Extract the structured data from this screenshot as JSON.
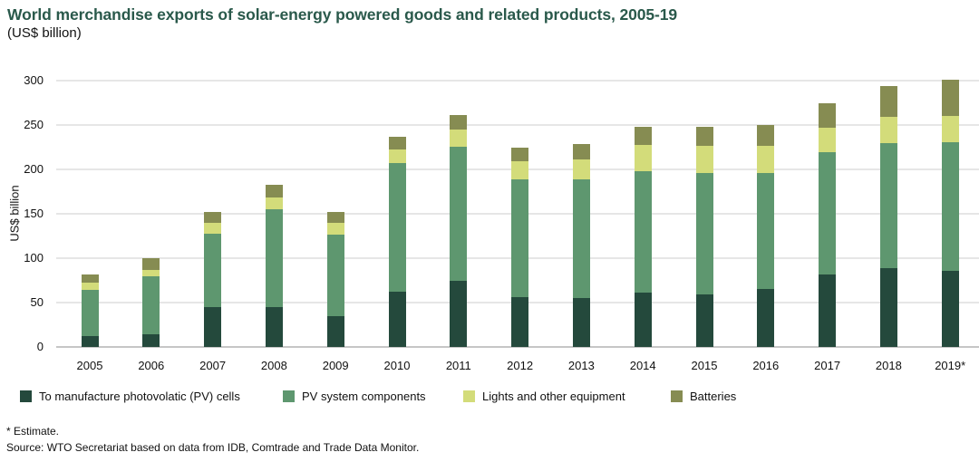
{
  "header": {
    "title": "World merchandise exports of solar-energy powered goods and related products, 2005-19",
    "subtitle": "(US$ billion)"
  },
  "colors": {
    "title_text": "#2A594B",
    "body_text": "#111111",
    "gridline": "#E6E6E6",
    "baseline": "#C6C6C6"
  },
  "chart_data": {
    "type": "bar",
    "stacked": true,
    "title": "World merchandise exports of solar-energy powered goods and related products, 2005-19",
    "subtitle": "(US$ billion)",
    "xlabel": "",
    "ylabel": "US$ billion",
    "ylim": [
      0,
      300
    ],
    "yticks": [
      0,
      50,
      100,
      150,
      200,
      250,
      300
    ],
    "grid": true,
    "legend_position": "bottom",
    "categories": [
      "2005",
      "2006",
      "2007",
      "2008",
      "2009",
      "2010",
      "2011",
      "2012",
      "2013",
      "2014",
      "2015",
      "2016",
      "2017",
      "2018",
      "2019*"
    ],
    "series": [
      {
        "name": "To manufacture photovolatic (PV) cells",
        "color": "#24493C",
        "values": [
          12,
          14,
          45,
          45,
          35,
          62,
          74,
          56,
          55,
          61,
          59,
          65,
          82,
          89,
          86
        ]
      },
      {
        "name": "PV system components",
        "color": "#5E976F",
        "values": [
          52,
          66,
          83,
          110,
          92,
          145,
          152,
          133,
          134,
          137,
          137,
          131,
          137,
          141,
          145
        ]
      },
      {
        "name": "Lights and other equipment",
        "color": "#D3DC7A",
        "values": [
          8,
          7,
          12,
          13,
          13,
          15,
          19,
          20,
          22,
          30,
          31,
          31,
          28,
          29,
          29
        ]
      },
      {
        "name": "Batteries",
        "color": "#868C52",
        "values": [
          10,
          13,
          12,
          15,
          12,
          15,
          16,
          16,
          18,
          20,
          21,
          23,
          28,
          35,
          41
        ]
      }
    ],
    "totals": [
      82,
      100,
      152,
      183,
      152,
      237,
      261,
      225,
      229,
      248,
      248,
      250,
      275,
      294,
      301
    ]
  },
  "footnotes": {
    "estimate": "* Estimate.",
    "source": "Source: WTO Secretariat based on data from IDB, Comtrade and Trade Data Monitor."
  }
}
